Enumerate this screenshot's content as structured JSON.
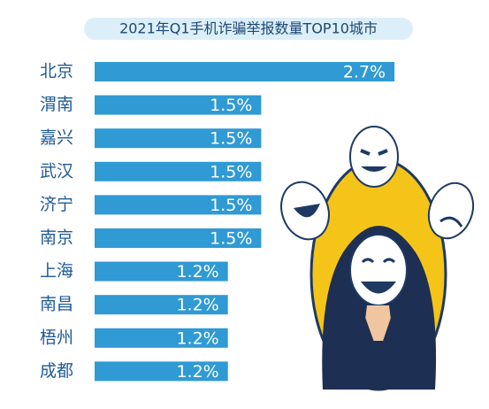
{
  "chart_data": {
    "type": "bar",
    "orientation": "horizontal",
    "title": "2021年Q1手机诈骗举报数量TOP10城市",
    "categories": [
      "北京",
      "渭南",
      "嘉兴",
      "武汉",
      "济宁",
      "南京",
      "上海",
      "南昌",
      "梧州",
      "成都"
    ],
    "values": [
      2.7,
      1.5,
      1.5,
      1.5,
      1.5,
      1.5,
      1.2,
      1.2,
      1.2,
      1.2
    ],
    "value_labels": [
      "2.7%",
      "1.5%",
      "1.5%",
      "1.5%",
      "1.5%",
      "1.5%",
      "1.2%",
      "1.2%",
      "1.2%",
      "1.2%"
    ],
    "color": "#2f9ad4"
  }
}
